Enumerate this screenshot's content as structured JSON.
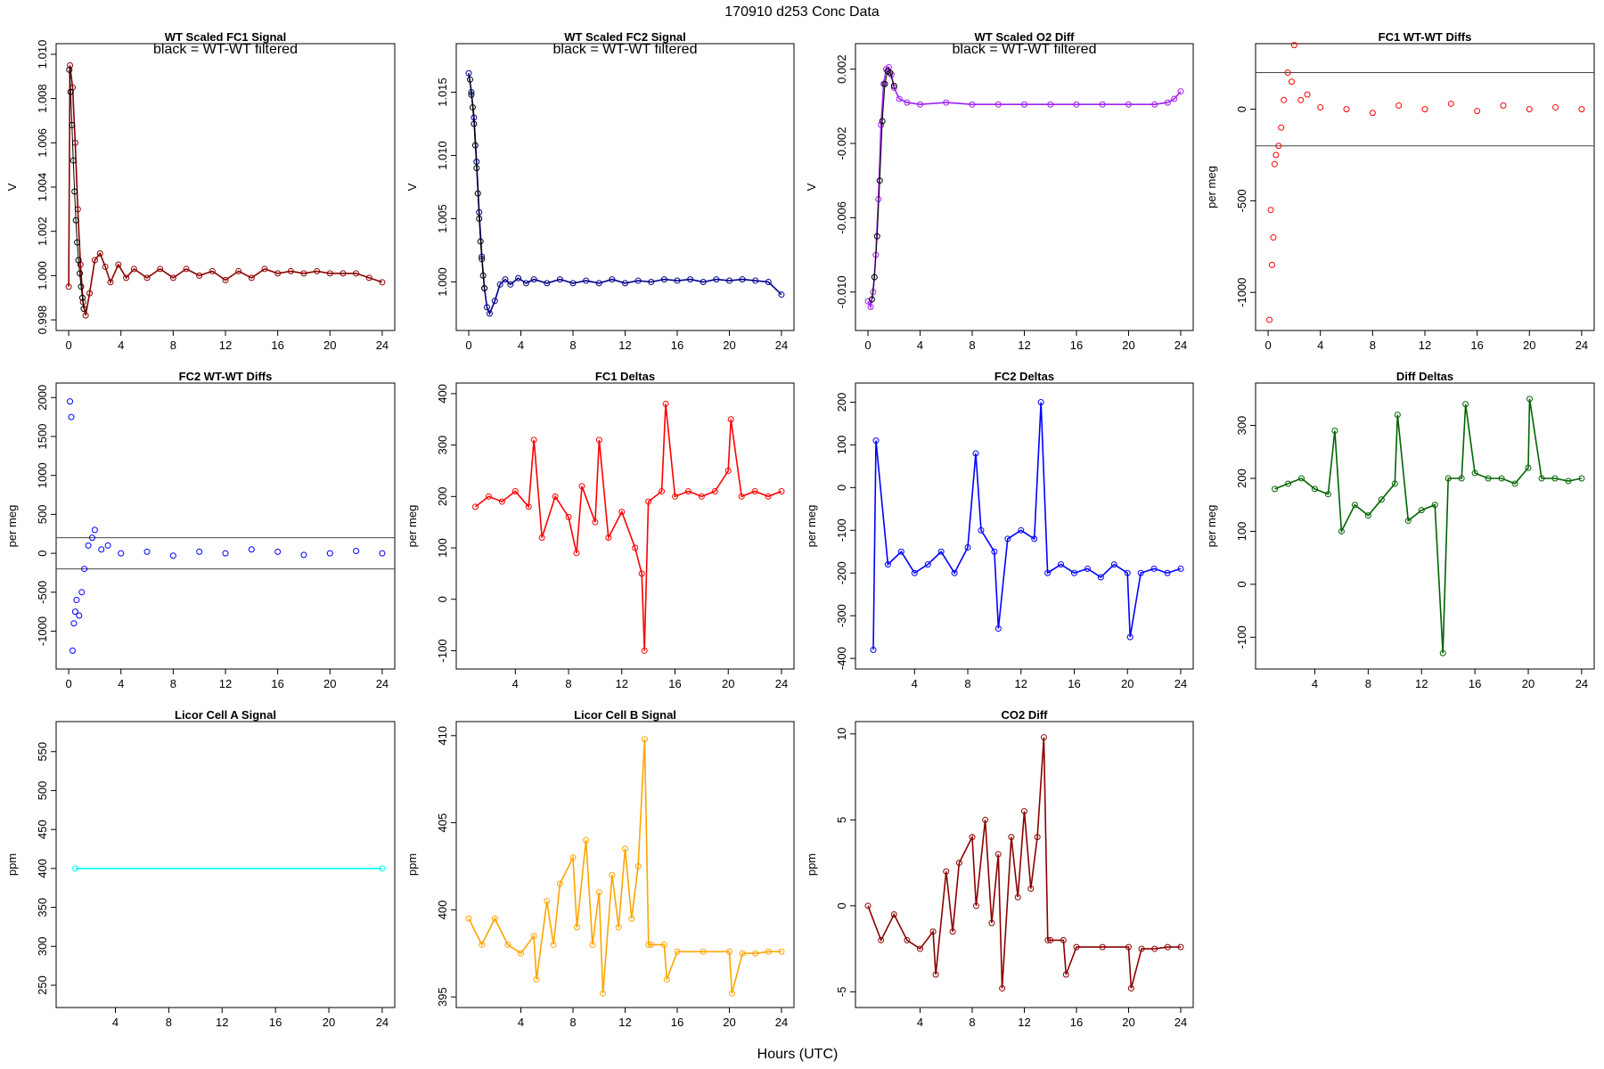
{
  "page": {
    "title": "170910    d253    Conc Data",
    "xlabel": "Hours (UTC)"
  },
  "chart_data": [
    {
      "type": "line",
      "title": "WT Scaled FC1 Signal",
      "subtitle": "black = WT-WT filtered",
      "ylabel": "V",
      "xlim": [
        0,
        24
      ],
      "ylim": [
        0.998,
        1.01
      ],
      "xticks": [
        0,
        4,
        8,
        12,
        16,
        20,
        24
      ],
      "yticks": [
        0.998,
        1.0,
        1.002,
        1.004,
        1.006,
        1.008,
        1.01
      ],
      "ytick_labels": [
        "0.998",
        "1.000",
        "1.002",
        "1.004",
        "1.006",
        "1.008",
        "1.010"
      ],
      "series": [
        {
          "name": "FC1 signal",
          "color": "#8B0000",
          "x": [
            0.0,
            0.1,
            0.3,
            0.5,
            0.7,
            0.9,
            1.1,
            1.3,
            1.6,
            2.0,
            2.4,
            2.8,
            3.2,
            3.8,
            4.4,
            5.0,
            6.0,
            7.0,
            8.0,
            9.0,
            10.0,
            11.0,
            12.0,
            13.0,
            14.0,
            15.0,
            16.0,
            17.0,
            18.0,
            19.0,
            20.0,
            21.0,
            22.0,
            23.0,
            24.0
          ],
          "y": [
            0.9995,
            1.0095,
            1.0085,
            1.006,
            1.003,
            1.0005,
            0.9988,
            0.9982,
            0.9992,
            1.0007,
            1.001,
            1.0004,
            0.9997,
            1.0005,
            0.9999,
            1.0003,
            0.9999,
            1.0003,
            0.9999,
            1.0003,
            1.0,
            1.0002,
            0.9998,
            1.0002,
            0.9999,
            1.0003,
            1.0001,
            1.0002,
            1.0001,
            1.0002,
            1.0001,
            1.0001,
            1.0001,
            0.9999,
            0.9997
          ]
        },
        {
          "name": "filtered",
          "color": "#000000",
          "x": [
            0.05,
            0.15,
            0.25,
            0.35,
            0.45,
            0.55,
            0.65,
            0.75,
            0.85,
            0.95,
            1.05,
            1.15
          ],
          "y": [
            1.0093,
            1.0083,
            1.0068,
            1.0052,
            1.0038,
            1.0025,
            1.0015,
            1.0007,
            1.0001,
            0.9995,
            0.999,
            0.9985
          ]
        }
      ]
    },
    {
      "type": "line",
      "title": "WT Scaled FC2 Signal",
      "subtitle": "black = WT-WT filtered",
      "ylabel": "V",
      "xlim": [
        0,
        24
      ],
      "ylim": [
        0.997,
        1.018
      ],
      "xticks": [
        0,
        4,
        8,
        12,
        16,
        20,
        24
      ],
      "yticks": [
        1.0,
        1.005,
        1.01,
        1.015
      ],
      "ytick_labels": [
        "1.000",
        "1.005",
        "1.010",
        "1.015"
      ],
      "series": [
        {
          "name": "FC2 signal",
          "color": "#00008B",
          "x": [
            0.0,
            0.2,
            0.4,
            0.6,
            0.8,
            1.0,
            1.2,
            1.4,
            1.6,
            2.0,
            2.4,
            2.8,
            3.2,
            3.8,
            4.4,
            5.0,
            6.0,
            7.0,
            8.0,
            9.0,
            10.0,
            11.0,
            12.0,
            13.0,
            14.0,
            15.0,
            16.0,
            17.0,
            18.0,
            19.0,
            20.0,
            21.0,
            22.0,
            23.0,
            24.0
          ],
          "y": [
            1.0165,
            1.015,
            1.013,
            1.0095,
            1.0055,
            1.002,
            0.9995,
            0.998,
            0.9975,
            0.9985,
            0.9998,
            1.0002,
            0.9998,
            1.0003,
            0.9999,
            1.0002,
            0.9999,
            1.0002,
            0.9999,
            1.0001,
            0.9999,
            1.0002,
            0.9999,
            1.0001,
            1.0,
            1.0002,
            1.0001,
            1.0002,
            1.0,
            1.0002,
            1.0001,
            1.0002,
            1.0001,
            1.0,
            0.999
          ]
        },
        {
          "name": "filtered",
          "color": "#000000",
          "x": [
            0.1,
            0.2,
            0.3,
            0.4,
            0.5,
            0.6,
            0.7,
            0.8,
            0.9,
            1.0,
            1.1,
            1.2
          ],
          "y": [
            1.016,
            1.0148,
            1.0138,
            1.0125,
            1.0108,
            1.009,
            1.007,
            1.005,
            1.0032,
            1.0018,
            1.0005,
            0.9995
          ]
        }
      ]
    },
    {
      "type": "line",
      "title": "WT Scaled O2 Diff",
      "subtitle": "black = WT-WT filtered",
      "ylabel": "V",
      "xlim": [
        0,
        24
      ],
      "ylim": [
        -0.0115,
        0.0028
      ],
      "xticks": [
        0,
        4,
        8,
        12,
        16,
        20,
        24
      ],
      "yticks": [
        -0.01,
        -0.006,
        -0.002,
        0.002
      ],
      "ytick_labels": [
        "-0.010",
        "-0.006",
        "-0.002",
        "0.002"
      ],
      "series": [
        {
          "name": "O2 diff",
          "color": "#A020F0",
          "x": [
            0.0,
            0.2,
            0.4,
            0.6,
            0.8,
            1.0,
            1.2,
            1.4,
            1.6,
            1.8,
            2.0,
            2.4,
            3.0,
            4.0,
            6.0,
            8.0,
            10.0,
            12.0,
            14.0,
            16.0,
            18.0,
            20.0,
            22.0,
            23.0,
            23.5,
            24.0
          ],
          "y": [
            -0.0105,
            -0.0108,
            -0.01,
            -0.008,
            -0.005,
            -0.001,
            0.0012,
            0.002,
            0.0021,
            0.0017,
            0.001,
            0.0004,
            0.0002,
            0.0001,
            0.0002,
            0.0001,
            0.0001,
            0.0001,
            0.0001,
            0.0001,
            0.0001,
            0.0001,
            0.0001,
            0.0002,
            0.0004,
            0.0008
          ]
        },
        {
          "name": "filtered",
          "color": "#000000",
          "x": [
            0.3,
            0.5,
            0.7,
            0.9,
            1.1,
            1.3,
            1.5,
            1.7,
            2.0
          ],
          "y": [
            -0.0104,
            -0.0092,
            -0.007,
            -0.004,
            -0.0008,
            0.0012,
            0.0019,
            0.0018,
            0.0011
          ]
        }
      ]
    },
    {
      "type": "scatter",
      "title": "FC1 WT-WT Diffs",
      "ylabel": "per meg",
      "xlim": [
        0,
        24
      ],
      "ylim": [
        -1150,
        300
      ],
      "xticks": [
        0,
        4,
        8,
        12,
        16,
        20,
        24
      ],
      "yticks": [
        -1000,
        -500,
        0
      ],
      "hlines": [
        200,
        -200
      ],
      "series": [
        {
          "name": "FC1 WT-WT",
          "color": "#FF0000",
          "x": [
            0.1,
            0.2,
            0.3,
            0.4,
            0.5,
            0.6,
            0.8,
            1.0,
            1.2,
            1.5,
            1.8,
            2.0,
            2.5,
            3.0,
            4.0,
            6.0,
            8.0,
            10.0,
            12.0,
            14.0,
            16.0,
            18.0,
            20.0,
            22.0,
            24.0
          ],
          "y": [
            -1150,
            -550,
            -850,
            -700,
            -300,
            -250,
            -200,
            -100,
            50,
            200,
            150,
            350,
            50,
            80,
            10,
            0,
            -20,
            20,
            0,
            30,
            -10,
            20,
            0,
            10,
            0
          ]
        }
      ]
    },
    {
      "type": "scatter",
      "title": "FC2 WT-WT Diffs",
      "ylabel": "per meg",
      "xlim": [
        0,
        24
      ],
      "ylim": [
        -1350,
        2050
      ],
      "xticks": [
        0,
        4,
        8,
        12,
        16,
        20,
        24
      ],
      "yticks": [
        -1000,
        -500,
        0,
        500,
        1000,
        1500,
        2000
      ],
      "hlines": [
        200,
        -200
      ],
      "series": [
        {
          "name": "FC2 WT-WT",
          "color": "#0000FF",
          "x": [
            0.1,
            0.2,
            0.3,
            0.4,
            0.5,
            0.6,
            0.8,
            1.0,
            1.2,
            1.5,
            1.8,
            2.0,
            2.5,
            3.0,
            4.0,
            6.0,
            8.0,
            10.0,
            12.0,
            14.0,
            16.0,
            18.0,
            20.0,
            22.0,
            24.0
          ],
          "y": [
            1950,
            1750,
            -1250,
            -900,
            -750,
            -600,
            -800,
            -500,
            -200,
            100,
            200,
            300,
            50,
            100,
            0,
            20,
            -30,
            20,
            0,
            50,
            20,
            -20,
            0,
            30,
            0
          ]
        }
      ]
    },
    {
      "type": "line",
      "title": "FC1 Deltas",
      "ylabel": "per meg",
      "xlim": [
        0.5,
        24
      ],
      "ylim": [
        -115,
        400
      ],
      "xticks": [
        4,
        8,
        12,
        16,
        20,
        24
      ],
      "yticks": [
        -100,
        0,
        100,
        200,
        300,
        400
      ],
      "series": [
        {
          "name": "FC1 delta",
          "color": "#FF0000",
          "x": [
            1.0,
            2.0,
            3.0,
            4.0,
            5.0,
            5.4,
            6.0,
            7.0,
            8.0,
            8.6,
            9.0,
            10.0,
            10.3,
            11.0,
            12.0,
            13.0,
            13.5,
            13.7,
            14.0,
            15.0,
            15.3,
            16.0,
            17.0,
            18.0,
            19.0,
            20.0,
            20.2,
            21.0,
            22.0,
            23.0,
            24.0
          ],
          "y": [
            180,
            200,
            190,
            210,
            180,
            310,
            120,
            200,
            160,
            90,
            220,
            150,
            310,
            120,
            170,
            100,
            50,
            -100,
            190,
            210,
            380,
            200,
            210,
            200,
            210,
            250,
            350,
            200,
            210,
            200,
            210
          ]
        }
      ]
    },
    {
      "type": "line",
      "title": "FC2 Deltas",
      "ylabel": "per meg",
      "xlim": [
        0.5,
        24
      ],
      "ylim": [
        -400,
        220
      ],
      "xticks": [
        4,
        8,
        12,
        16,
        20,
        24
      ],
      "yticks": [
        -400,
        -300,
        -200,
        -100,
        0,
        100,
        200
      ],
      "series": [
        {
          "name": "FC2 delta",
          "color": "#0000FF",
          "x": [
            0.9,
            1.1,
            2.0,
            3.0,
            4.0,
            5.0,
            6.0,
            7.0,
            8.0,
            8.6,
            9.0,
            10.0,
            10.3,
            11.0,
            12.0,
            13.0,
            13.5,
            14.0,
            15.0,
            16.0,
            17.0,
            18.0,
            19.0,
            20.0,
            20.2,
            21.0,
            22.0,
            23.0,
            24.0
          ],
          "y": [
            -380,
            110,
            -180,
            -150,
            -200,
            -180,
            -150,
            -200,
            -140,
            80,
            -100,
            -150,
            -330,
            -120,
            -100,
            -120,
            200,
            -200,
            -180,
            -200,
            -190,
            -210,
            -180,
            -200,
            -350,
            -200,
            -190,
            -200,
            -190
          ]
        }
      ]
    },
    {
      "type": "line",
      "title": "Diff Deltas",
      "ylabel": "per meg",
      "xlim": [
        0.5,
        24
      ],
      "ylim": [
        -140,
        360
      ],
      "xticks": [
        4,
        8,
        12,
        16,
        20,
        24
      ],
      "yticks": [
        -100,
        0,
        100,
        200,
        300
      ],
      "series": [
        {
          "name": "Diff delta",
          "color": "#006400",
          "x": [
            1.0,
            2.0,
            3.0,
            4.0,
            5.0,
            5.5,
            6.0,
            7.0,
            8.0,
            9.0,
            10.0,
            10.2,
            11.0,
            12.0,
            13.0,
            13.6,
            14.0,
            15.0,
            15.3,
            16.0,
            17.0,
            18.0,
            19.0,
            20.0,
            20.1,
            21.0,
            22.0,
            23.0,
            24.0
          ],
          "y": [
            180,
            190,
            200,
            180,
            170,
            290,
            100,
            150,
            130,
            160,
            190,
            320,
            120,
            140,
            150,
            -130,
            200,
            200,
            340,
            210,
            200,
            200,
            190,
            220,
            350,
            200,
            200,
            195,
            200
          ]
        }
      ]
    },
    {
      "type": "line",
      "title": "Licor Cell A Signal",
      "ylabel": "ppm",
      "xlim": [
        0.5,
        24
      ],
      "ylim": [
        235,
        575
      ],
      "xticks": [
        4,
        8,
        12,
        16,
        20,
        24
      ],
      "yticks": [
        250,
        300,
        350,
        400,
        450,
        500,
        550
      ],
      "series": [
        {
          "name": "Cell A",
          "color": "#00FFFF",
          "x": [
            1.0,
            24.0
          ],
          "y": [
            400,
            400
          ]
        }
      ]
    },
    {
      "type": "line",
      "title": "Licor Cell B Signal",
      "ylabel": "ppm",
      "xlim": [
        0.0,
        24
      ],
      "ylim": [
        395,
        410.2
      ],
      "xticks": [
        4,
        8,
        12,
        16,
        20,
        24
      ],
      "yticks": [
        395,
        400,
        405,
        410
      ],
      "series": [
        {
          "name": "Cell B",
          "color": "#FFA500",
          "x": [
            0.0,
            1.0,
            2.0,
            3.0,
            4.0,
            5.0,
            5.2,
            6.0,
            6.5,
            7.0,
            8.0,
            8.3,
            9.0,
            9.5,
            10.0,
            10.3,
            11.0,
            11.5,
            12.0,
            12.5,
            13.0,
            13.5,
            13.8,
            14.0,
            15.0,
            15.2,
            16.0,
            18.0,
            20.0,
            20.2,
            21.0,
            22.0,
            23.0,
            24.0
          ],
          "y": [
            399.5,
            398.0,
            399.5,
            398.0,
            397.5,
            398.5,
            396.0,
            400.5,
            398.0,
            401.5,
            403.0,
            399.0,
            404.0,
            398.0,
            401.0,
            395.2,
            402.0,
            399.0,
            403.5,
            399.5,
            402.5,
            409.8,
            398.0,
            398.0,
            398.0,
            396.0,
            397.6,
            397.6,
            397.6,
            395.2,
            397.5,
            397.5,
            397.6,
            397.6
          ]
        }
      ]
    },
    {
      "type": "line",
      "title": "CO2 Diff",
      "ylabel": "ppm",
      "xlim": [
        0.0,
        24
      ],
      "ylim": [
        -5.3,
        10.1
      ],
      "xticks": [
        4,
        8,
        12,
        16,
        20,
        24
      ],
      "yticks": [
        -5,
        0,
        5,
        10
      ],
      "series": [
        {
          "name": "CO2 diff",
          "color": "#8B0000",
          "x": [
            0.0,
            1.0,
            2.0,
            3.0,
            4.0,
            5.0,
            5.2,
            6.0,
            6.5,
            7.0,
            8.0,
            8.3,
            9.0,
            9.5,
            10.0,
            10.3,
            11.0,
            11.5,
            12.0,
            12.5,
            13.0,
            13.5,
            13.8,
            14.0,
            15.0,
            15.2,
            16.0,
            18.0,
            20.0,
            20.2,
            21.0,
            22.0,
            23.0,
            24.0
          ],
          "y": [
            0.0,
            -2.0,
            -0.5,
            -2.0,
            -2.5,
            -1.5,
            -4.0,
            2.0,
            -1.5,
            2.5,
            4.0,
            0.0,
            5.0,
            -1.0,
            3.0,
            -4.8,
            4.0,
            0.5,
            5.5,
            1.0,
            4.0,
            9.8,
            -2.0,
            -2.0,
            -2.0,
            -4.0,
            -2.4,
            -2.4,
            -2.4,
            -4.8,
            -2.5,
            -2.5,
            -2.4,
            -2.4
          ]
        }
      ]
    }
  ]
}
